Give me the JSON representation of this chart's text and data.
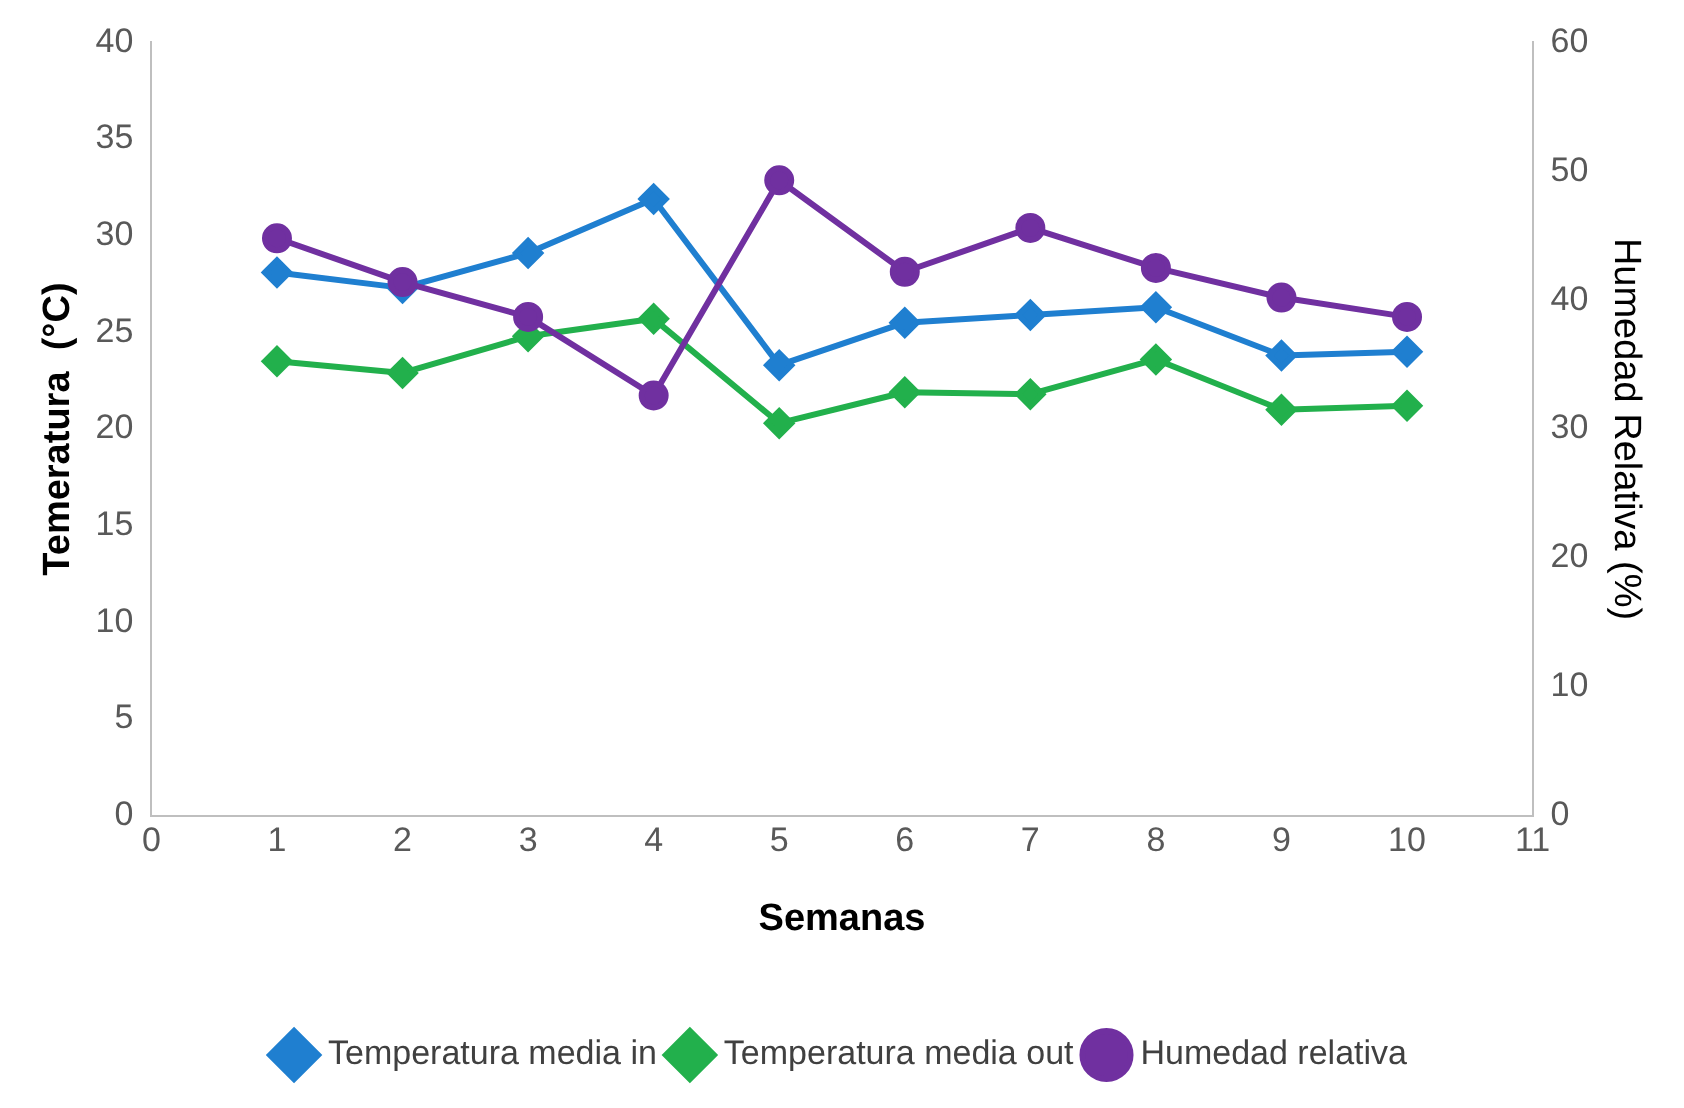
{
  "chart_data": {
    "type": "line",
    "xlabel": "Semanas",
    "ylabel": "Temeratura  (°C)",
    "y2label": "Humedad Relativa (%)",
    "x": [
      1,
      2,
      3,
      4,
      5,
      6,
      7,
      8,
      9,
      10
    ],
    "xlim": [
      0,
      11
    ],
    "xticks": [
      0,
      1,
      2,
      3,
      4,
      5,
      6,
      7,
      8,
      9,
      10,
      11
    ],
    "ylim": [
      0,
      40
    ],
    "yticks": [
      0,
      5,
      10,
      15,
      20,
      25,
      30,
      35,
      40
    ],
    "y2lim": [
      0,
      60
    ],
    "y2ticks": [
      0,
      10,
      20,
      30,
      40,
      50,
      60
    ],
    "grid": false,
    "legend": "bottom",
    "line_style": "solid",
    "series": [
      {
        "name": "Temperatura media in",
        "color": "#1f7fd0",
        "marker": "diamond",
        "values": [
          28.1,
          27.3,
          29.1,
          31.9,
          23.3,
          25.5,
          25.9,
          26.3,
          23.8,
          24.0
        ]
      },
      {
        "name": "Temperatura media out",
        "color": "#22b04c",
        "marker": "diamond",
        "values": [
          23.5,
          22.9,
          24.8,
          25.7,
          20.3,
          21.9,
          21.8,
          23.6,
          21.0,
          21.2
        ]
      },
      {
        "name": "Humedad relativa",
        "color": "#7030a0",
        "marker": "circle",
        "axis": "y2",
        "values": [
          44.8,
          41.4,
          38.7,
          32.6,
          49.3,
          42.2,
          45.6,
          42.5,
          40.2,
          38.7
        ]
      }
    ]
  }
}
